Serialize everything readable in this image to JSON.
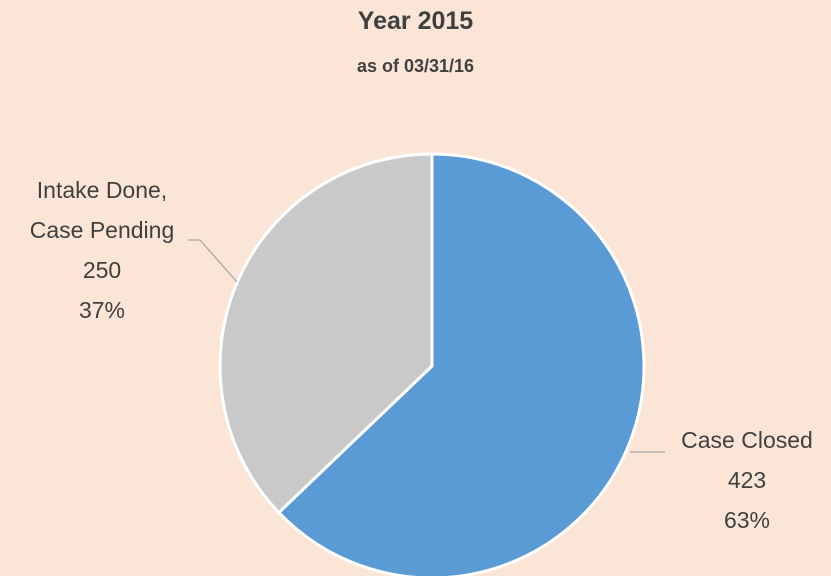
{
  "chart_data": {
    "type": "pie",
    "title": "Year 2015",
    "subtitle": "as of 03/31/16",
    "categories": [
      "Case Closed",
      "Intake Done, Case Pending"
    ],
    "values": [
      423,
      250
    ],
    "percent_labels": [
      "63%",
      "37%"
    ],
    "colors": [
      "#5b9bd5",
      "#c9c9c9"
    ]
  }
}
